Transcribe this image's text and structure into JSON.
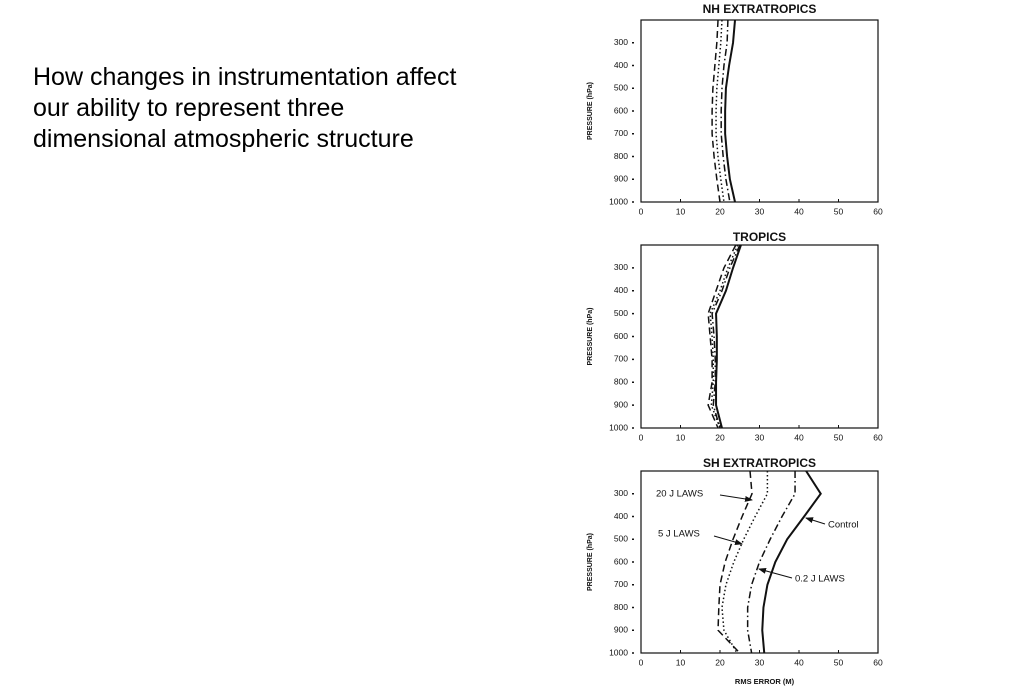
{
  "text": "How changes in instrumentation affect our ability to represent three dimensional atmospheric structure",
  "chart_data": [
    {
      "type": "line",
      "title": "NH EXTRATROPICS",
      "ylabel": "PRESSURE (hPa)",
      "y": [
        200,
        300,
        400,
        500,
        600,
        700,
        800,
        900,
        1000
      ],
      "xlim": [
        0,
        60
      ],
      "xticks": [
        0,
        10,
        20,
        30,
        40,
        50,
        60
      ],
      "ylim": [
        1000,
        200
      ],
      "yticks": [
        300,
        400,
        500,
        600,
        700,
        800,
        900,
        1000
      ],
      "series": [
        {
          "color": "#111111",
          "style": "dashed",
          "values": [
            19.5,
            19.2,
            18.7,
            18.2,
            18,
            18,
            18.5,
            19.2,
            20
          ]
        },
        {
          "color": "#111111",
          "style": "dotted",
          "values": [
            20.5,
            20.2,
            19.7,
            19.2,
            19,
            19,
            19.5,
            20.2,
            21
          ]
        },
        {
          "color": "#111111",
          "style": "solid",
          "values": [
            23.8,
            23.3,
            22.3,
            21.5,
            21.3,
            21.3,
            21.8,
            22.5,
            23.8
          ]
        },
        {
          "color": "#111111",
          "style": "dashdot",
          "values": [
            22,
            21.8,
            21,
            20.5,
            20.3,
            20.3,
            20.8,
            21.5,
            22.5
          ]
        }
      ]
    },
    {
      "type": "line",
      "title": "TROPICS",
      "ylabel": "PRESSURE (hPa)",
      "y": [
        200,
        300,
        400,
        500,
        600,
        700,
        800,
        900,
        1000
      ],
      "xlim": [
        0,
        60
      ],
      "xticks": [
        0,
        10,
        20,
        30,
        40,
        50,
        60
      ],
      "ylim": [
        1000,
        200
      ],
      "yticks": [
        300,
        400,
        500,
        600,
        700,
        800,
        900,
        1000
      ],
      "series": [
        {
          "color": "#111111",
          "style": "dashed",
          "values": [
            24,
            21,
            19,
            17,
            17.5,
            18,
            18,
            17,
            19.5
          ]
        },
        {
          "color": "#111111",
          "style": "dotted",
          "values": [
            24.5,
            22,
            20,
            17.5,
            18,
            18.3,
            18.3,
            17.8,
            20
          ]
        },
        {
          "color": "#111111",
          "style": "solid",
          "values": [
            25.3,
            23.3,
            21.5,
            19,
            19.2,
            19.2,
            19,
            19,
            20.5
          ]
        },
        {
          "color": "#111111",
          "style": "dashdot",
          "values": [
            25,
            22.5,
            20.5,
            18,
            18.5,
            18.8,
            18.8,
            18.3,
            20
          ]
        }
      ]
    },
    {
      "type": "line",
      "title": "SH EXTRATROPICS",
      "ylabel": "PRESSURE (hPa)",
      "xlabel": "RMS ERROR (M)",
      "y": [
        200,
        300,
        400,
        500,
        600,
        700,
        800,
        900,
        1000
      ],
      "xlim": [
        0,
        60
      ],
      "xticks": [
        0,
        10,
        20,
        30,
        40,
        50,
        60
      ],
      "ylim": [
        1000,
        200
      ],
      "yticks": [
        300,
        400,
        500,
        600,
        700,
        800,
        900,
        1000
      ],
      "series": [
        {
          "name": "20 J LAWS",
          "color": "#111111",
          "style": "dashed",
          "values": [
            27.6,
            28.1,
            25.6,
            23.3,
            21.3,
            20,
            19.7,
            19.5,
            25
          ]
        },
        {
          "name": "5 J LAWS",
          "color": "#111111",
          "style": "dotted",
          "values": [
            32,
            32,
            28.9,
            26,
            23.5,
            21.5,
            20.5,
            21,
            24.3
          ]
        },
        {
          "name": "Control",
          "color": "#111111",
          "style": "solid",
          "values": [
            41.8,
            45.5,
            41.3,
            37,
            34,
            32,
            31,
            30.7,
            31.2
          ]
        },
        {
          "name": "0.2 J LAWS",
          "color": "#111111",
          "style": "dashdot",
          "values": [
            39,
            39,
            35.7,
            32.7,
            30,
            28,
            27,
            27,
            28
          ]
        }
      ]
    }
  ]
}
